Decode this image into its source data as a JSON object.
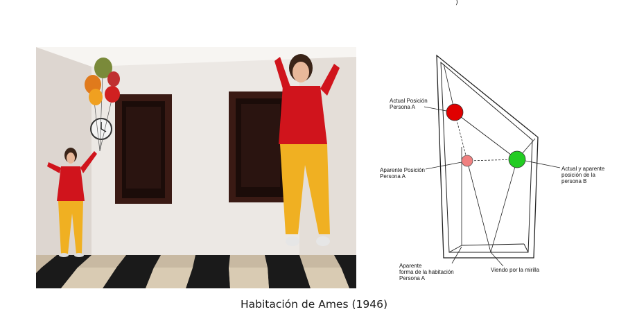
{
  "figure": {
    "caption": "Habitación de Ames (1946)",
    "top_fragment": ")"
  },
  "diagram": {
    "labels": {
      "actual_a_line1": "Actual Posición",
      "actual_a_line2": "Persona A",
      "apparent_a_line1": "Aparente Posición",
      "apparent_a_line2": "Persona A",
      "actual_b_line1": "Actual y aparente",
      "actual_b_line2": "posición de la",
      "actual_b_line3": "persona B",
      "room_shape_line1": "Aparente",
      "room_shape_line2": "forma de la habitación",
      "room_shape_line3": "Persona A",
      "peephole": "Viendo por la mirilla"
    },
    "colors": {
      "actual_a": "#e00000",
      "apparent_a": "#f08080",
      "person_b": "#22cc22"
    }
  },
  "photo": {
    "description_icon": "ames-room-photo"
  }
}
